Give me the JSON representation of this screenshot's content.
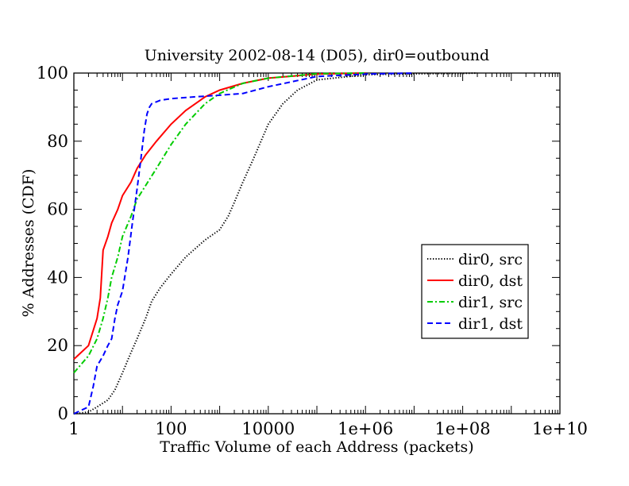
{
  "chart_data": {
    "type": "line",
    "title": "University 2002-08-14 (D05), dir0=outbound",
    "xlabel": "Traffic Volume of each Address (packets)",
    "ylabel": "% Addresses (CDF)",
    "xscale": "log",
    "xlim": [
      1,
      10000000000
    ],
    "ylim": [
      0,
      100
    ],
    "x_ticks": [
      1,
      100,
      10000,
      1000000,
      100000000,
      10000000000
    ],
    "x_tick_labels": [
      "1",
      "100",
      "10000",
      "1e+06",
      "1e+08",
      "1e+10"
    ],
    "y_ticks": [
      0,
      20,
      40,
      60,
      80,
      100
    ],
    "y_tick_labels": [
      "0",
      "20",
      "40",
      "60",
      "80",
      "100"
    ],
    "grid": false,
    "legend_position": "right",
    "series": [
      {
        "name": "dir0, src",
        "color": "#000000",
        "dash": "dotted",
        "points": [
          [
            1,
            0
          ],
          [
            2,
            0.5
          ],
          [
            3,
            2
          ],
          [
            5,
            4
          ],
          [
            7,
            7
          ],
          [
            10,
            12
          ],
          [
            15,
            18
          ],
          [
            20,
            22
          ],
          [
            30,
            28
          ],
          [
            40,
            33
          ],
          [
            60,
            37
          ],
          [
            100,
            41
          ],
          [
            200,
            46
          ],
          [
            500,
            51
          ],
          [
            1000,
            54
          ],
          [
            1500,
            58
          ],
          [
            2000,
            62
          ],
          [
            3000,
            68
          ],
          [
            5000,
            75
          ],
          [
            10000,
            85
          ],
          [
            20000,
            91
          ],
          [
            40000,
            95
          ],
          [
            100000,
            98
          ],
          [
            1000000,
            99.5
          ],
          [
            10000000,
            99.8
          ],
          [
            100000000,
            99.9
          ],
          [
            200000000,
            100
          ]
        ]
      },
      {
        "name": "dir0, dst",
        "color": "#ff0000",
        "dash": "solid",
        "points": [
          [
            1,
            16
          ],
          [
            2,
            20
          ],
          [
            3,
            28
          ],
          [
            3.5,
            34
          ],
          [
            4,
            48
          ],
          [
            5,
            52
          ],
          [
            6,
            56
          ],
          [
            8,
            60
          ],
          [
            10,
            64
          ],
          [
            15,
            68
          ],
          [
            20,
            72
          ],
          [
            30,
            76
          ],
          [
            50,
            80
          ],
          [
            100,
            85
          ],
          [
            200,
            89
          ],
          [
            500,
            93
          ],
          [
            1000,
            95
          ],
          [
            3000,
            97
          ],
          [
            10000,
            98.5
          ],
          [
            100000,
            99.7
          ],
          [
            1000000,
            100
          ]
        ]
      },
      {
        "name": "dir1, src",
        "color": "#00cc00",
        "dash": "dashdot",
        "points": [
          [
            1,
            12
          ],
          [
            2,
            17
          ],
          [
            3,
            22
          ],
          [
            4,
            28
          ],
          [
            5,
            34
          ],
          [
            6,
            40
          ],
          [
            8,
            46
          ],
          [
            10,
            52
          ],
          [
            15,
            58
          ],
          [
            20,
            63
          ],
          [
            30,
            67
          ],
          [
            50,
            72
          ],
          [
            100,
            79
          ],
          [
            200,
            85
          ],
          [
            500,
            91
          ],
          [
            1000,
            94
          ],
          [
            3000,
            97
          ],
          [
            10000,
            98.5
          ],
          [
            100000,
            99.8
          ],
          [
            1000000,
            100
          ]
        ]
      },
      {
        "name": "dir1, dst",
        "color": "#0000ff",
        "dash": "dashed",
        "points": [
          [
            1,
            0
          ],
          [
            2,
            2
          ],
          [
            2.5,
            8
          ],
          [
            3,
            14
          ],
          [
            4,
            17
          ],
          [
            5,
            20
          ],
          [
            6,
            22
          ],
          [
            7,
            28
          ],
          [
            8,
            32
          ],
          [
            10,
            36
          ],
          [
            13,
            46
          ],
          [
            16,
            56
          ],
          [
            20,
            66
          ],
          [
            24,
            75
          ],
          [
            28,
            83
          ],
          [
            32,
            88
          ],
          [
            36,
            90
          ],
          [
            40,
            91
          ],
          [
            60,
            92
          ],
          [
            100,
            92.5
          ],
          [
            300,
            93
          ],
          [
            1000,
            93.5
          ],
          [
            3000,
            94
          ],
          [
            10000,
            96
          ],
          [
            100000,
            99
          ],
          [
            1000000,
            99.7
          ],
          [
            10000000,
            100
          ]
        ]
      }
    ]
  }
}
